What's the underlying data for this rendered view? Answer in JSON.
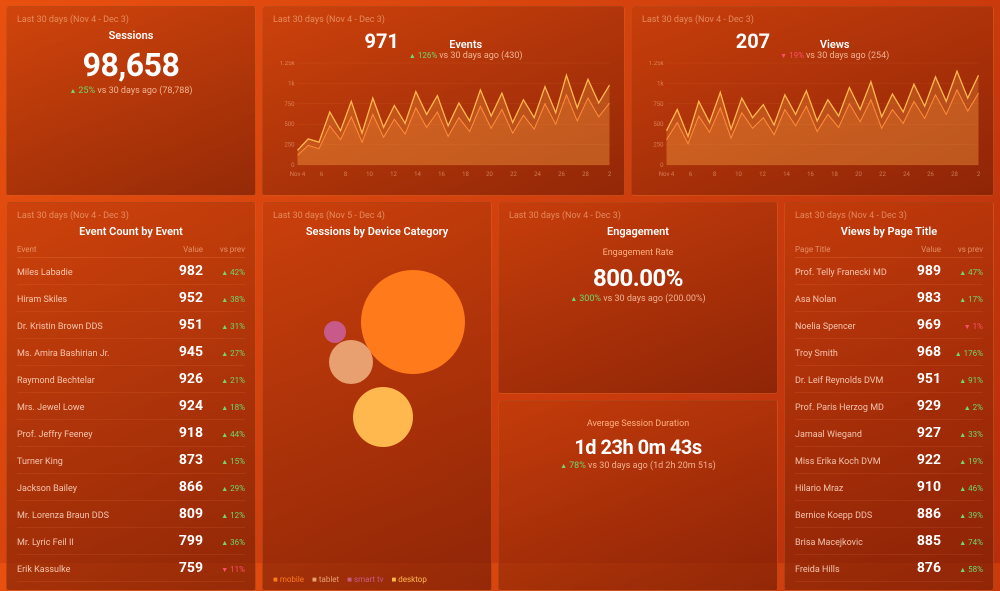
{
  "colors": {
    "bg_grad_a": "#e8500f",
    "bg_grad_b": "#b82e0c",
    "line1": "#ffb84d",
    "line2": "#ff8c3a",
    "area1": "rgba(255,180,80,0.25)",
    "area2": "rgba(255,140,50,0.18)",
    "grid": "rgba(255,170,110,0.15)",
    "axis_text": "rgba(255,200,160,0.5)"
  },
  "sessions": {
    "period": "Last 30 days (Nov 4 - Dec 3)",
    "title": "Sessions",
    "value": "98,658",
    "delta": "25%",
    "dir": "up",
    "compare": "vs 30 days ago (78,788)"
  },
  "events_chart": {
    "period": "Last 30 days (Nov 4 - Dec 3)",
    "title": "Events",
    "value": "971",
    "delta": "126%",
    "dir": "up",
    "compare": "vs 30 days ago (430)",
    "ylim": [
      0,
      1250
    ],
    "yticks": [
      0,
      250,
      500,
      750,
      1000,
      1250
    ],
    "xticks": [
      "Nov 4",
      "6",
      "8",
      "10",
      "12",
      "14",
      "16",
      "18",
      "20",
      "22",
      "24",
      "26",
      "28",
      "2"
    ],
    "series1": [
      180,
      320,
      280,
      650,
      420,
      780,
      390,
      820,
      460,
      730,
      510,
      900,
      620,
      850,
      480,
      760,
      540,
      920,
      600,
      880,
      520,
      800,
      580,
      960,
      640,
      1100,
      700,
      1050,
      760,
      980
    ],
    "series2": [
      120,
      240,
      200,
      480,
      310,
      590,
      280,
      620,
      340,
      560,
      380,
      700,
      460,
      650,
      350,
      580,
      410,
      720,
      450,
      680,
      390,
      610,
      440,
      750,
      500,
      860,
      540,
      820,
      590,
      760
    ]
  },
  "views_chart": {
    "period": "Last 30 days (Nov 4 - Dec 3)",
    "title": "Views",
    "value": "207",
    "delta": "19%",
    "dir": "dn",
    "compare": "vs 30 days ago (254)",
    "ylim": [
      0,
      1250
    ],
    "yticks": [
      0,
      250,
      500,
      750,
      1000,
      1250
    ],
    "xticks": [
      "Nov 4",
      "6",
      "8",
      "10",
      "12",
      "14",
      "16",
      "18",
      "20",
      "22",
      "24",
      "26",
      "28",
      "2"
    ],
    "series1": [
      420,
      680,
      350,
      780,
      520,
      890,
      440,
      820,
      580,
      740,
      490,
      860,
      620,
      910,
      540,
      800,
      600,
      950,
      680,
      1020,
      590,
      870,
      650,
      990,
      720,
      1080,
      780,
      1150,
      820,
      1100
    ],
    "series2": [
      310,
      520,
      260,
      600,
      400,
      700,
      330,
      640,
      450,
      580,
      370,
      680,
      480,
      720,
      410,
      620,
      460,
      750,
      530,
      800,
      450,
      680,
      510,
      780,
      570,
      860,
      620,
      920,
      660,
      880
    ]
  },
  "event_table": {
    "period": "Last 30 days (Nov 4 - Dec 3)",
    "title": "Event Count by Event",
    "cols": [
      "Event",
      "Value",
      "vs prev"
    ],
    "rows": [
      {
        "name": "Miles Labadie",
        "val": "982",
        "d": "42%",
        "dir": "up"
      },
      {
        "name": "Hiram Skiles",
        "val": "952",
        "d": "38%",
        "dir": "up"
      },
      {
        "name": "Dr. Kristin Brown DDS",
        "val": "951",
        "d": "31%",
        "dir": "up"
      },
      {
        "name": "Ms. Amira Bashirian Jr.",
        "val": "945",
        "d": "27%",
        "dir": "up"
      },
      {
        "name": "Raymond Bechtelar",
        "val": "926",
        "d": "21%",
        "dir": "up"
      },
      {
        "name": "Mrs. Jewel Lowe",
        "val": "924",
        "d": "18%",
        "dir": "up"
      },
      {
        "name": "Prof. Jeffry Feeney",
        "val": "918",
        "d": "44%",
        "dir": "up"
      },
      {
        "name": "Turner King",
        "val": "873",
        "d": "15%",
        "dir": "up"
      },
      {
        "name": "Jackson Bailey",
        "val": "866",
        "d": "29%",
        "dir": "up"
      },
      {
        "name": "Mr. Lorenza Braun DDS",
        "val": "809",
        "d": "12%",
        "dir": "up"
      },
      {
        "name": "Mr. Lyric Feil II",
        "val": "799",
        "d": "36%",
        "dir": "up"
      },
      {
        "name": "Erik Kassulke",
        "val": "759",
        "d": "11%",
        "dir": "dn"
      }
    ]
  },
  "device": {
    "period": "Last 30 days (Nov 5 - Dec 4)",
    "title": "Sessions by Device Category",
    "bubbles": [
      {
        "label": "mobile",
        "color": "#ff7a1a",
        "x": 140,
        "y": 80,
        "r": 52
      },
      {
        "label": "tablet",
        "color": "#e8a070",
        "x": 78,
        "y": 120,
        "r": 22
      },
      {
        "label": "smart tv",
        "color": "#c85a8a",
        "x": 62,
        "y": 90,
        "r": 11
      },
      {
        "label": "desktop",
        "color": "#ffb84d",
        "x": 110,
        "y": 175,
        "r": 30
      }
    ],
    "legend": [
      {
        "label": "mobile",
        "color": "#ff7a1a"
      },
      {
        "label": "tablet",
        "color": "#e8a070"
      },
      {
        "label": "smart tv",
        "color": "#c85a8a"
      },
      {
        "label": "desktop",
        "color": "#ffb84d"
      }
    ]
  },
  "engagement": {
    "period": "Last 30 days (Nov 4 - Dec 3)",
    "title": "Engagement",
    "rate": {
      "label": "Engagement Rate",
      "value": "800.00%",
      "delta": "300%",
      "dir": "up",
      "compare": "vs 30 days ago (200.00%)"
    },
    "duration": {
      "label": "Average Session Duration",
      "value": "1d 23h 0m 43s",
      "delta": "78%",
      "dir": "up",
      "compare": "vs 30 days ago (1d 2h 20m 51s)"
    }
  },
  "page_table": {
    "period": "Last 30 days (Nov 4 - Dec 3)",
    "title": "Views by Page Title",
    "cols": [
      "Page Title",
      "Value",
      "vs prev"
    ],
    "rows": [
      {
        "name": "Prof. Telly Franecki MD",
        "val": "989",
        "d": "47%",
        "dir": "up"
      },
      {
        "name": "Asa Nolan",
        "val": "983",
        "d": "17%",
        "dir": "up"
      },
      {
        "name": "Noelia Spencer",
        "val": "969",
        "d": "1%",
        "dir": "dn"
      },
      {
        "name": "Troy Smith",
        "val": "968",
        "d": "176%",
        "dir": "up"
      },
      {
        "name": "Dr. Leif Reynolds DVM",
        "val": "951",
        "d": "91%",
        "dir": "up"
      },
      {
        "name": "Prof. Paris Herzog MD",
        "val": "929",
        "d": "2%",
        "dir": "up"
      },
      {
        "name": "Jamaal Wiegand",
        "val": "927",
        "d": "33%",
        "dir": "up"
      },
      {
        "name": "Miss Erika Koch DVM",
        "val": "922",
        "d": "19%",
        "dir": "up"
      },
      {
        "name": "Hilario Mraz",
        "val": "910",
        "d": "46%",
        "dir": "up"
      },
      {
        "name": "Bernice Koepp DDS",
        "val": "886",
        "d": "39%",
        "dir": "up"
      },
      {
        "name": "Brisa Macejkovic",
        "val": "885",
        "d": "74%",
        "dir": "up"
      },
      {
        "name": "Freida Hills",
        "val": "876",
        "d": "58%",
        "dir": "up"
      }
    ]
  }
}
